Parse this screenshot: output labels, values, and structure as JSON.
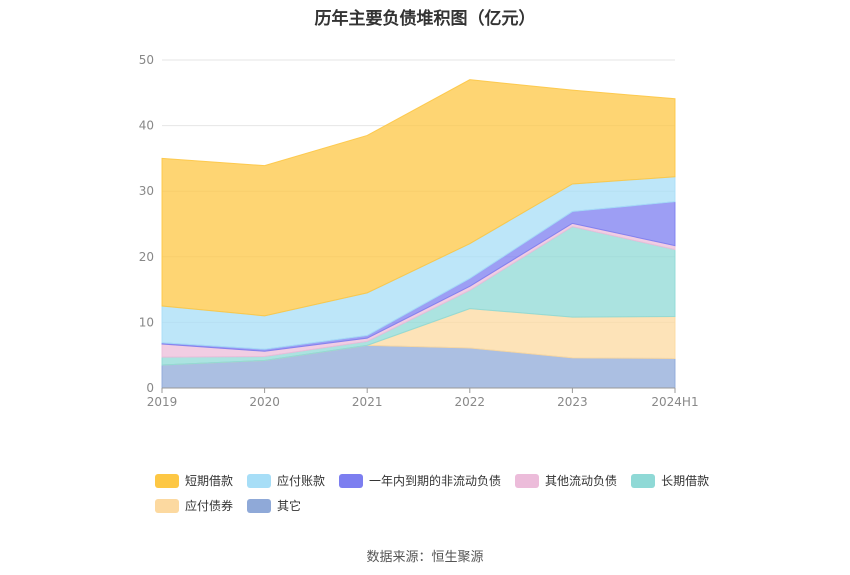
{
  "title": "历年主要负债堆积图（亿元）",
  "source": "数据来源：恒生聚源",
  "chart_data": {
    "type": "area",
    "stacked": true,
    "categories": [
      "2019",
      "2020",
      "2021",
      "2022",
      "2023",
      "2024H1"
    ],
    "ylim": [
      0,
      50
    ],
    "yticks": [
      0,
      10,
      20,
      30,
      40,
      50
    ],
    "grid": true,
    "legend_position": "bottom",
    "series": [
      {
        "name": "其它",
        "color": "#8fa9d8",
        "values": [
          3.5,
          4.2,
          6.5,
          6.1,
          4.6,
          4.5
        ]
      },
      {
        "name": "应付债券",
        "color": "#fcd9a0",
        "values": [
          0,
          0,
          0,
          6.0,
          6.2,
          6.4
        ]
      },
      {
        "name": "长期借款",
        "color": "#8fd9d6",
        "values": [
          1.2,
          0.6,
          0.6,
          2.8,
          13.8,
          10.2
        ]
      },
      {
        "name": "其他流动负债",
        "color": "#ecbcda",
        "values": [
          2.0,
          0.8,
          0.5,
          0.6,
          0.5,
          0.6
        ]
      },
      {
        "name": "一年内到期的非流动负债",
        "color": "#7c7ef0",
        "values": [
          0.2,
          0.3,
          0.4,
          1.2,
          1.8,
          6.7
        ]
      },
      {
        "name": "应付账款",
        "color": "#a7def7",
        "values": [
          5.6,
          5.1,
          6.5,
          5.3,
          4.2,
          3.8
        ]
      },
      {
        "name": "短期借款",
        "color": "#fdc744",
        "values": [
          22.5,
          22.9,
          24.0,
          25.0,
          14.3,
          11.9
        ]
      }
    ]
  },
  "legend": [
    {
      "name": "短期借款",
      "color": "#fdc744"
    },
    {
      "name": "应付账款",
      "color": "#a7def7"
    },
    {
      "name": "一年内到期的非流动负债",
      "color": "#7c7ef0"
    },
    {
      "name": "其他流动负债",
      "color": "#ecbcda"
    },
    {
      "name": "长期借款",
      "color": "#8fd9d6"
    },
    {
      "name": "应付债券",
      "color": "#fcd9a0"
    },
    {
      "name": "其它",
      "color": "#8fa9d8"
    }
  ]
}
